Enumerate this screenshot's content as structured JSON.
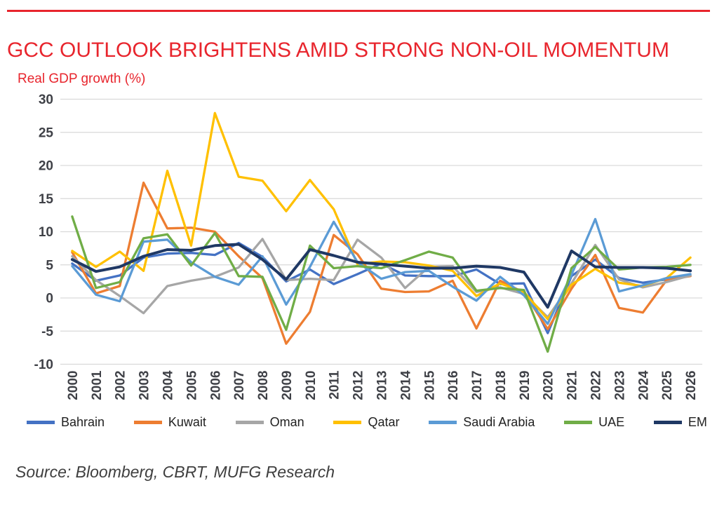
{
  "header": {
    "title": "GCC OUTLOOK BRIGHTENS AMID STRONG NON-OIL MOMENTUM",
    "subtitle": "Real GDP growth (%)",
    "accent_color": "#e8252d"
  },
  "chart_data": {
    "type": "line",
    "title": "GCC OUTLOOK BRIGHTENS AMID STRONG NON-OIL MOMENTUM",
    "ylabel": "Real GDP growth (%)",
    "x": [
      2000,
      2001,
      2002,
      2003,
      2004,
      2005,
      2006,
      2007,
      2008,
      2009,
      2010,
      2011,
      2012,
      2013,
      2014,
      2015,
      2016,
      2017,
      2018,
      2019,
      2020,
      2021,
      2022,
      2023,
      2024,
      2025,
      2026
    ],
    "ylim": [
      -10,
      30
    ],
    "ytick_step": 5,
    "grid": "horizontal",
    "gridline_color": "#d9d9d9",
    "axis_label_color": "#3f4147",
    "legend_position": "bottom",
    "series": [
      {
        "name": "Bahrain",
        "color": "#4472c4",
        "values": [
          5.2,
          2.6,
          3.4,
          6.1,
          6.7,
          6.8,
          6.5,
          8.3,
          6.2,
          2.5,
          4.3,
          2.1,
          3.6,
          5.2,
          3.4,
          3.3,
          3.3,
          4.3,
          2.1,
          2.2,
          -5.3,
          3.3,
          5.8,
          3.0,
          2.3,
          2.8,
          3.4
        ]
      },
      {
        "name": "Kuwait",
        "color": "#ed7d31",
        "values": [
          6.9,
          0.7,
          1.8,
          17.4,
          10.5,
          10.6,
          10.0,
          6.3,
          3.0,
          -6.9,
          -2.1,
          9.5,
          6.6,
          1.4,
          0.9,
          1.0,
          2.6,
          -4.6,
          2.6,
          0.8,
          -4.7,
          1.4,
          6.5,
          -1.5,
          -2.2,
          2.7,
          3.3
        ]
      },
      {
        "name": "Oman",
        "color": "#a6a6a6",
        "values": [
          6.3,
          2.7,
          0.3,
          -2.3,
          1.8,
          2.6,
          3.2,
          4.6,
          8.9,
          2.7,
          2.9,
          2.7,
          8.8,
          6.1,
          1.5,
          4.7,
          4.8,
          0.9,
          1.6,
          0.6,
          -2.9,
          2.2,
          8.0,
          2.8,
          1.6,
          2.4,
          3.4
        ]
      },
      {
        "name": "Qatar",
        "color": "#ffc000",
        "values": [
          7.1,
          4.7,
          7.0,
          4.1,
          19.2,
          7.9,
          27.9,
          18.3,
          17.7,
          13.1,
          17.8,
          13.4,
          5.1,
          5.5,
          5.4,
          4.9,
          4.1,
          0.3,
          2.2,
          0.9,
          -3.2,
          2.0,
          4.4,
          2.3,
          1.8,
          3.0,
          6.1
        ]
      },
      {
        "name": "Saudi Arabia",
        "color": "#5b9bd5",
        "values": [
          4.8,
          0.5,
          -0.5,
          8.5,
          8.8,
          5.4,
          3.2,
          2.0,
          6.3,
          -1.0,
          4.7,
          11.5,
          5.4,
          2.9,
          3.9,
          4.1,
          1.7,
          -0.4,
          3.2,
          0.4,
          -3.9,
          3.5,
          11.9,
          1.0,
          1.9,
          3.0,
          3.6
        ]
      },
      {
        "name": "UAE",
        "color": "#70ad47",
        "values": [
          12.3,
          1.5,
          2.4,
          9.0,
          9.6,
          4.9,
          9.8,
          3.3,
          3.2,
          -4.8,
          7.9,
          4.5,
          4.8,
          4.5,
          5.7,
          7.0,
          6.1,
          1.1,
          1.5,
          1.2,
          -8.1,
          4.5,
          7.7,
          4.3,
          4.6,
          4.7,
          5.0
        ]
      },
      {
        "name": "EM",
        "color": "#1f3864",
        "values": [
          5.8,
          4.0,
          4.7,
          6.3,
          7.3,
          7.2,
          7.9,
          8.1,
          5.8,
          2.8,
          7.3,
          6.4,
          5.4,
          5.1,
          4.8,
          4.5,
          4.5,
          4.8,
          4.6,
          3.9,
          -1.4,
          7.1,
          4.7,
          4.6,
          4.6,
          4.5,
          4.1
        ],
        "thick": true
      }
    ]
  },
  "footer": {
    "source": "Source: Bloomberg, CBRT, MUFG Research"
  }
}
